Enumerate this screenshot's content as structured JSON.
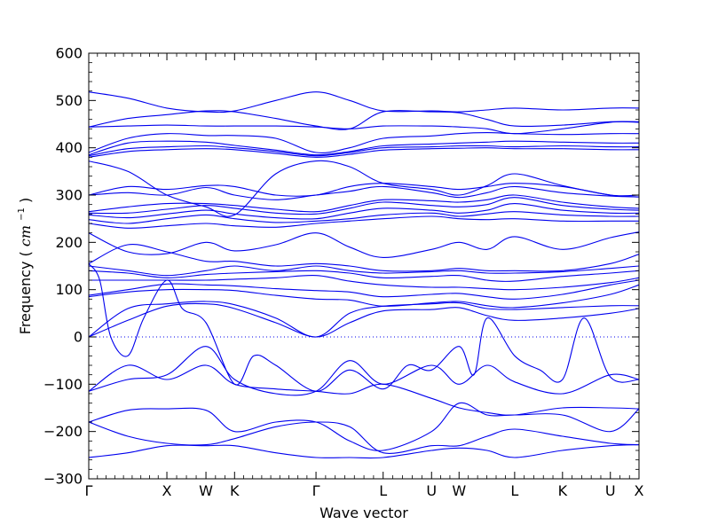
{
  "chart_data": {
    "type": "line",
    "title": "",
    "xlabel": "Wave vector",
    "ylabel_prefix": "Frequency ",
    "ylabel_unit_open": "(",
    "ylabel_unit_base": "cm",
    "ylabel_unit_exp": "−1",
    "ylabel_unit_close": ")",
    "ylim": [
      -300,
      600
    ],
    "xlim": [
      0,
      1
    ],
    "yticks": [
      -300,
      -200,
      -100,
      0,
      100,
      200,
      300,
      400,
      500,
      600
    ],
    "ytick_labels": [
      "−300",
      "−200",
      "−100",
      "0",
      "100",
      "200",
      "300",
      "400",
      "500",
      "600"
    ],
    "xticks": [
      {
        "label": "Γ",
        "x": 0.0
      },
      {
        "label": "X",
        "x": 0.142
      },
      {
        "label": "W",
        "x": 0.213
      },
      {
        "label": "K",
        "x": 0.265
      },
      {
        "label": "Γ",
        "x": 0.413
      },
      {
        "label": "L",
        "x": 0.535
      },
      {
        "label": "U",
        "x": 0.623
      },
      {
        "label": "W",
        "x": 0.673
      },
      {
        "label": "L",
        "x": 0.774
      },
      {
        "label": "K",
        "x": 0.861
      },
      {
        "label": "U",
        "x": 0.948
      },
      {
        "label": "X",
        "x": 1.0
      }
    ],
    "line_color": "#0000ee",
    "zero_line": {
      "y": 0,
      "style": "dotted"
    },
    "grid": false,
    "series": [
      {
        "x": [
          0,
          0.071,
          0.142,
          0.213,
          0.265,
          0.34,
          0.413,
          0.474,
          0.535,
          0.623,
          0.673,
          0.724,
          0.774,
          0.861,
          0.948,
          1.0
        ],
        "y": [
          518,
          505,
          484,
          476,
          478,
          500,
          518,
          500,
          478,
          478,
          476,
          480,
          484,
          480,
          484,
          484
        ]
      },
      {
        "x": [
          0,
          0.071,
          0.142,
          0.213,
          0.265,
          0.34,
          0.413,
          0.474,
          0.535,
          0.623,
          0.673,
          0.724,
          0.774,
          0.861,
          0.948,
          1.0
        ],
        "y": [
          444,
          462,
          470,
          478,
          476,
          462,
          446,
          440,
          476,
          476,
          474,
          460,
          446,
          448,
          455,
          455
        ]
      },
      {
        "x": [
          0,
          0.071,
          0.142,
          0.213,
          0.265,
          0.34,
          0.413,
          0.474,
          0.535,
          0.623,
          0.673,
          0.724,
          0.774,
          0.861,
          0.948,
          1.0
        ],
        "y": [
          444,
          446,
          448,
          446,
          446,
          446,
          444,
          440,
          446,
          446,
          444,
          440,
          430,
          440,
          454,
          454
        ]
      },
      {
        "x": [
          0,
          0.071,
          0.142,
          0.213,
          0.265,
          0.34,
          0.413,
          0.474,
          0.535,
          0.623,
          0.673,
          0.724,
          0.774,
          0.861,
          0.948,
          1.0
        ],
        "y": [
          390,
          420,
          430,
          426,
          426,
          420,
          390,
          400,
          420,
          425,
          430,
          432,
          430,
          428,
          430,
          430
        ]
      },
      {
        "x": [
          0,
          0.071,
          0.142,
          0.213,
          0.265,
          0.34,
          0.413,
          0.474,
          0.535,
          0.623,
          0.673,
          0.724,
          0.774,
          0.861,
          0.948,
          1.0
        ],
        "y": [
          385,
          410,
          414,
          412,
          405,
          395,
          385,
          392,
          404,
          408,
          410,
          412,
          414,
          412,
          410,
          410
        ]
      },
      {
        "x": [
          0,
          0.071,
          0.142,
          0.213,
          0.265,
          0.34,
          0.413,
          0.474,
          0.535,
          0.623,
          0.673,
          0.724,
          0.774,
          0.861,
          0.948,
          1.0
        ],
        "y": [
          383,
          398,
          402,
          404,
          400,
          392,
          383,
          390,
          400,
          402,
          404,
          404,
          402,
          404,
          402,
          402
        ]
      },
      {
        "x": [
          0,
          0.071,
          0.142,
          0.213,
          0.265,
          0.34,
          0.413,
          0.474,
          0.535,
          0.623,
          0.673,
          0.724,
          0.774,
          0.861,
          0.948,
          1.0
        ],
        "y": [
          380,
          392,
          396,
          398,
          396,
          388,
          380,
          386,
          395,
          398,
          399,
          400,
          398,
          398,
          396,
          396
        ]
      },
      {
        "x": [
          0,
          0.071,
          0.142,
          0.213,
          0.265,
          0.34,
          0.413,
          0.474,
          0.535,
          0.623,
          0.673,
          0.724,
          0.774,
          0.861,
          0.948,
          1.0
        ],
        "y": [
          372,
          350,
          300,
          275,
          258,
          345,
          372,
          360,
          325,
          312,
          300,
          320,
          345,
          320,
          300,
          300
        ]
      },
      {
        "x": [
          0,
          0.071,
          0.142,
          0.213,
          0.265,
          0.34,
          0.413,
          0.474,
          0.535,
          0.623,
          0.673,
          0.724,
          0.774,
          0.861,
          0.948,
          1.0
        ],
        "y": [
          300,
          318,
          312,
          320,
          318,
          300,
          300,
          318,
          325,
          318,
          312,
          318,
          325,
          318,
          300,
          296
        ]
      },
      {
        "x": [
          0,
          0.071,
          0.142,
          0.213,
          0.265,
          0.34,
          0.413,
          0.474,
          0.535,
          0.623,
          0.673,
          0.724,
          0.774,
          0.861,
          0.948,
          1.0
        ],
        "y": [
          300,
          305,
          300,
          316,
          300,
          290,
          300,
          308,
          318,
          305,
          295,
          305,
          318,
          305,
          298,
          296
        ]
      },
      {
        "x": [
          0,
          0.071,
          0.142,
          0.213,
          0.265,
          0.34,
          0.413,
          0.474,
          0.535,
          0.623,
          0.673,
          0.724,
          0.774,
          0.861,
          0.948,
          1.0
        ],
        "y": [
          265,
          275,
          282,
          282,
          278,
          270,
          265,
          278,
          290,
          288,
          285,
          290,
          300,
          285,
          275,
          272
        ]
      },
      {
        "x": [
          0,
          0.071,
          0.142,
          0.213,
          0.265,
          0.34,
          0.413,
          0.474,
          0.535,
          0.623,
          0.673,
          0.724,
          0.774,
          0.861,
          0.948,
          1.0
        ],
        "y": [
          262,
          262,
          270,
          278,
          272,
          262,
          260,
          272,
          285,
          278,
          275,
          280,
          295,
          278,
          270,
          268
        ]
      },
      {
        "x": [
          0,
          0.071,
          0.142,
          0.213,
          0.265,
          0.34,
          0.413,
          0.474,
          0.535,
          0.623,
          0.673,
          0.724,
          0.774,
          0.861,
          0.948,
          1.0
        ],
        "y": [
          258,
          252,
          260,
          268,
          260,
          252,
          250,
          262,
          272,
          268,
          262,
          268,
          282,
          268,
          262,
          262
        ]
      },
      {
        "x": [
          0,
          0.071,
          0.142,
          0.213,
          0.265,
          0.34,
          0.413,
          0.474,
          0.535,
          0.623,
          0.673,
          0.724,
          0.774,
          0.861,
          0.948,
          1.0
        ],
        "y": [
          248,
          240,
          250,
          258,
          250,
          242,
          245,
          250,
          258,
          262,
          255,
          260,
          265,
          258,
          255,
          255
        ]
      },
      {
        "x": [
          0,
          0.071,
          0.142,
          0.213,
          0.265,
          0.34,
          0.413,
          0.474,
          0.535,
          0.623,
          0.673,
          0.724,
          0.774,
          0.861,
          0.948,
          1.0
        ],
        "y": [
          240,
          230,
          235,
          240,
          235,
          232,
          240,
          245,
          250,
          255,
          250,
          248,
          250,
          245,
          245,
          245
        ]
      },
      {
        "x": [
          0,
          0.071,
          0.142,
          0.213,
          0.265,
          0.34,
          0.413,
          0.474,
          0.535,
          0.623,
          0.673,
          0.724,
          0.774,
          0.861,
          0.948,
          1.0
        ],
        "y": [
          220,
          180,
          176,
          200,
          182,
          195,
          220,
          190,
          168,
          185,
          200,
          185,
          212,
          185,
          210,
          222
        ]
      },
      {
        "x": [
          0,
          0.071,
          0.142,
          0.213,
          0.265,
          0.34,
          0.413,
          0.474,
          0.535,
          0.623,
          0.673,
          0.724,
          0.774,
          0.861,
          0.948,
          1.0
        ],
        "y": [
          155,
          195,
          180,
          160,
          160,
          150,
          155,
          150,
          140,
          140,
          145,
          140,
          140,
          140,
          155,
          175
        ]
      },
      {
        "x": [
          0,
          0.071,
          0.142,
          0.213,
          0.265,
          0.34,
          0.413,
          0.474,
          0.535,
          0.623,
          0.673,
          0.724,
          0.774,
          0.861,
          0.948,
          1.0
        ],
        "y": [
          150,
          140,
          130,
          140,
          150,
          140,
          150,
          140,
          135,
          138,
          140,
          135,
          135,
          138,
          145,
          150
        ]
      },
      {
        "x": [
          0,
          0.071,
          0.142,
          0.213,
          0.265,
          0.34,
          0.413,
          0.474,
          0.535,
          0.623,
          0.673,
          0.724,
          0.774,
          0.861,
          0.948,
          1.0
        ],
        "y": [
          140,
          135,
          125,
          132,
          135,
          138,
          140,
          135,
          125,
          128,
          130,
          120,
          118,
          128,
          135,
          140
        ]
      },
      {
        "x": [
          0,
          0.071,
          0.142,
          0.213,
          0.265,
          0.34,
          0.413,
          0.474,
          0.535,
          0.623,
          0.673,
          0.724,
          0.774,
          0.861,
          0.948,
          1.0
        ],
        "y": [
          120,
          120,
          120,
          120,
          122,
          125,
          130,
          118,
          110,
          105,
          105,
          102,
          100,
          105,
          115,
          125
        ]
      },
      {
        "x": [
          0,
          0.071,
          0.142,
          0.213,
          0.265,
          0.34,
          0.413,
          0.474,
          0.535,
          0.623,
          0.673,
          0.724,
          0.774,
          0.861,
          0.948,
          1.0
        ],
        "y": [
          88,
          100,
          112,
          110,
          108,
          102,
          98,
          95,
          85,
          90,
          92,
          85,
          80,
          90,
          110,
          120
        ]
      },
      {
        "x": [
          0,
          0.071,
          0.142,
          0.213,
          0.265,
          0.34,
          0.413,
          0.474,
          0.535,
          0.623,
          0.673,
          0.724,
          0.774,
          0.861,
          0.948,
          1.0
        ],
        "y": [
          85,
          95,
          100,
          100,
          98,
          88,
          80,
          78,
          65,
          72,
          75,
          66,
          62,
          72,
          90,
          110
        ]
      },
      {
        "x": [
          0,
          0.071,
          0.142,
          0.213,
          0.265,
          0.34,
          0.413,
          0.474,
          0.535,
          0.623,
          0.673,
          0.724,
          0.774,
          0.861,
          0.948,
          1.0
        ],
        "y": [
          0,
          60,
          70,
          75,
          68,
          40,
          0,
          50,
          65,
          70,
          72,
          60,
          58,
          62,
          66,
          66
        ]
      },
      {
        "x": [
          0,
          0.071,
          0.142,
          0.213,
          0.265,
          0.34,
          0.413,
          0.474,
          0.535,
          0.623,
          0.673,
          0.724,
          0.774,
          0.861,
          0.948,
          1.0
        ],
        "y": [
          0,
          35,
          65,
          70,
          60,
          30,
          0,
          30,
          55,
          58,
          62,
          45,
          35,
          40,
          50,
          60
        ]
      },
      {
        "x": [
          0,
          0.02,
          0.04,
          0.071,
          0.1,
          0.142,
          0.17,
          0.213,
          0.265,
          0.3,
          0.34,
          0.413,
          0.474,
          0.535,
          0.58,
          0.623,
          0.673,
          0.7,
          0.724,
          0.774,
          0.82,
          0.861,
          0.9,
          0.948,
          1.0
        ],
        "y": [
          155,
          120,
          0,
          -40,
          40,
          120,
          60,
          30,
          -100,
          -40,
          -60,
          -115,
          -70,
          -110,
          -60,
          -70,
          -20,
          -80,
          40,
          -40,
          -70,
          -90,
          40,
          -85,
          -90
        ]
      },
      {
        "x": [
          0,
          0.071,
          0.142,
          0.213,
          0.265,
          0.34,
          0.413,
          0.474,
          0.535,
          0.623,
          0.673,
          0.724,
          0.774,
          0.861,
          0.948,
          1.0
        ],
        "y": [
          -115,
          -90,
          -80,
          -20,
          -90,
          -120,
          -115,
          -50,
          -100,
          -60,
          -100,
          -60,
          -95,
          -120,
          -80,
          -90
        ]
      },
      {
        "x": [
          0,
          0.071,
          0.142,
          0.213,
          0.265,
          0.34,
          0.413,
          0.474,
          0.535,
          0.623,
          0.673,
          0.724,
          0.774,
          0.861,
          0.948,
          1.0
        ],
        "y": [
          -115,
          -60,
          -90,
          -60,
          -100,
          -110,
          -115,
          -120,
          -100,
          -130,
          -150,
          -160,
          -165,
          -150,
          -150,
          -152
        ]
      },
      {
        "x": [
          0,
          0.071,
          0.142,
          0.213,
          0.265,
          0.34,
          0.413,
          0.474,
          0.535,
          0.623,
          0.673,
          0.724,
          0.774,
          0.861,
          0.948,
          1.0
        ],
        "y": [
          -180,
          -155,
          -152,
          -155,
          -200,
          -180,
          -180,
          -220,
          -240,
          -200,
          -140,
          -165,
          -165,
          -165,
          -200,
          -152
        ]
      },
      {
        "x": [
          0,
          0.071,
          0.142,
          0.213,
          0.265,
          0.34,
          0.413,
          0.474,
          0.535,
          0.623,
          0.673,
          0.724,
          0.774,
          0.861,
          0.948,
          1.0
        ],
        "y": [
          -180,
          -210,
          -225,
          -228,
          -215,
          -190,
          -180,
          -190,
          -245,
          -230,
          -230,
          -210,
          -195,
          -210,
          -225,
          -228
        ]
      },
      {
        "x": [
          0,
          0.071,
          0.142,
          0.213,
          0.265,
          0.34,
          0.413,
          0.474,
          0.535,
          0.623,
          0.673,
          0.724,
          0.774,
          0.861,
          0.948,
          1.0
        ],
        "y": [
          -255,
          -245,
          -230,
          -230,
          -230,
          -245,
          -255,
          -255,
          -255,
          -240,
          -235,
          -240,
          -255,
          -240,
          -230,
          -228
        ]
      }
    ]
  }
}
